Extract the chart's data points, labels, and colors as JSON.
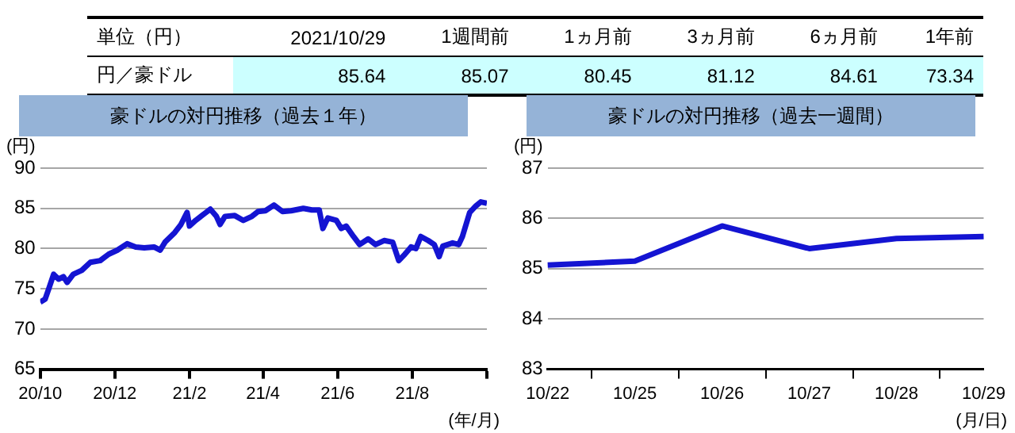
{
  "chart_data": [
    {
      "type": "other",
      "title": "単位（円）",
      "categories": [
        "2021/10/29",
        "1週間前",
        "1ヵ月前",
        "3ヵ月前",
        "6ヵ月前",
        "1年前"
      ],
      "series": [
        {
          "name": "円／豪ドル",
          "color": "#ccffff",
          "values": [
            85.64,
            85.07,
            80.45,
            81.12,
            84.61,
            73.34
          ]
        }
      ],
      "data_labels": true
    },
    {
      "type": "line",
      "title": "豪ドルの対円推移（過去１年）",
      "ylabel": "(円)",
      "xlabel": "(年/月)",
      "grid": "y",
      "marker": "none",
      "line_style": "solid",
      "xlim": [
        "2020-10-29",
        "2021-10-29"
      ],
      "xticks": [
        {
          "value": "2020-10-29",
          "label": "20/10"
        },
        {
          "value": "2020-12-29",
          "label": "20/12"
        },
        {
          "value": "2021-02-28",
          "label": "21/2"
        },
        {
          "value": "2021-04-29",
          "label": "21/4"
        },
        {
          "value": "2021-06-29",
          "label": "21/6"
        },
        {
          "value": "2021-08-29",
          "label": "21/8"
        },
        {
          "value": "2021-10-29",
          "label": null
        }
      ],
      "ylim": [
        65,
        90
      ],
      "yticks": [
        65,
        70,
        75,
        80,
        85,
        90
      ],
      "x": [
        "2020-10-29",
        "2020-11-02",
        "2020-11-05",
        "2020-11-09",
        "2020-11-13",
        "2020-11-17",
        "2020-11-20",
        "2020-11-25",
        "2020-12-02",
        "2020-12-09",
        "2020-12-17",
        "2020-12-24",
        "2020-12-31",
        "2021-01-08",
        "2021-01-15",
        "2021-01-22",
        "2021-01-30",
        "2021-02-04",
        "2021-02-08",
        "2021-02-16",
        "2021-02-21",
        "2021-02-26",
        "2021-02-28",
        "2021-03-05",
        "2021-03-11",
        "2021-03-17",
        "2021-03-22",
        "2021-03-25",
        "2021-03-29",
        "2021-04-06",
        "2021-04-13",
        "2021-04-20",
        "2021-04-25",
        "2021-05-01",
        "2021-05-08",
        "2021-05-15",
        "2021-05-22",
        "2021-06-01",
        "2021-06-08",
        "2021-06-14",
        "2021-06-17",
        "2021-06-21",
        "2021-06-28",
        "2021-07-02",
        "2021-07-06",
        "2021-07-12",
        "2021-07-17",
        "2021-07-24",
        "2021-07-30",
        "2021-08-06",
        "2021-08-13",
        "2021-08-18",
        "2021-08-23",
        "2021-08-28",
        "2021-09-01",
        "2021-09-05",
        "2021-09-11",
        "2021-09-16",
        "2021-09-20",
        "2021-09-23",
        "2021-10-01",
        "2021-10-06",
        "2021-10-09",
        "2021-10-15",
        "2021-10-20",
        "2021-10-24",
        "2021-10-29"
      ],
      "series": [
        {
          "color": "#1414d2",
          "values": [
            73.34,
            73.7,
            75,
            76.8,
            76.2,
            76.5,
            75.8,
            76.8,
            77.3,
            78.3,
            78.5,
            79.3,
            79.8,
            80.6,
            80.2,
            80.1,
            80.2,
            79.8,
            80.8,
            82,
            83,
            84.5,
            82.8,
            83.5,
            84.2,
            84.9,
            84,
            83,
            84,
            84.1,
            83.5,
            84,
            84.6,
            84.7,
            85.4,
            84.6,
            84.7,
            85,
            84.8,
            84.8,
            82.5,
            83.8,
            83.5,
            82.5,
            82.8,
            81.5,
            80.5,
            81.2,
            80.5,
            81,
            80.8,
            78.5,
            79.3,
            80.2,
            80,
            81.5,
            81,
            80.5,
            79,
            80.3,
            80.7,
            80.5,
            81.5,
            84.5,
            85.3,
            85.8,
            85.64
          ]
        }
      ]
    },
    {
      "type": "line",
      "title": "豪ドルの対円推移（過去一週間）",
      "ylabel": "(円)",
      "xlabel": "(月/日)",
      "grid": "y",
      "marker": "none",
      "line_style": "solid",
      "categories": [
        "10/22",
        "10/25",
        "10/26",
        "10/27",
        "10/28",
        "10/29"
      ],
      "ylim": [
        83,
        87
      ],
      "yticks": [
        83,
        84,
        85,
        86,
        87
      ],
      "series": [
        {
          "color": "#1414d2",
          "values": [
            85.07,
            85.15,
            85.85,
            85.4,
            85.6,
            85.64
          ]
        }
      ]
    }
  ]
}
